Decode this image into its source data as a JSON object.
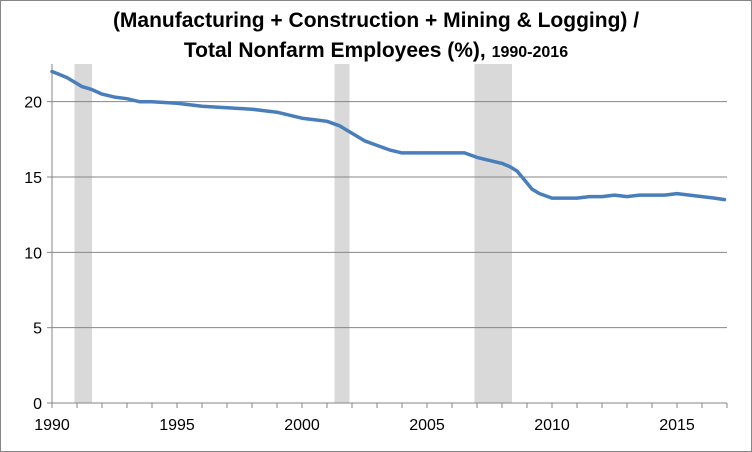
{
  "chart_data": {
    "type": "line",
    "title_line1": "(Manufacturing + Construction + Mining & Logging) /",
    "title_line2": "Total Nonfarm Employees (%),",
    "title_years": "1990-2016",
    "xlabel": "",
    "ylabel": "",
    "xlim": [
      1990,
      2017
    ],
    "ylim": [
      0,
      22.5
    ],
    "x_ticks": [
      1990,
      1995,
      2000,
      2005,
      2010,
      2015
    ],
    "y_ticks": [
      0,
      5,
      10,
      15,
      20
    ],
    "grid": "horizontal",
    "line_color": "#4a7ebb",
    "recession_color": "#d9d9d9",
    "recessions": [
      [
        1990.9,
        1991.6
      ],
      [
        2001.3,
        2001.9
      ],
      [
        2006.9,
        2008.4
      ]
    ],
    "series": [
      {
        "x": [
          1990.0,
          1990.3,
          1990.6,
          1990.9,
          1991.2,
          1991.6,
          1992.0,
          1992.5,
          1993.0,
          1993.5,
          1994.0,
          1995.0,
          1995.5,
          1996.0,
          1997.0,
          1998.0,
          1998.5,
          1999.0,
          1999.5,
          2000.0,
          2000.5,
          2001.0,
          2001.5,
          2002.0,
          2002.5,
          2003.0,
          2003.5,
          2004.0,
          2005.0,
          2006.0,
          2006.5,
          2007.0,
          2007.5,
          2008.0,
          2008.3,
          2008.6,
          2008.9,
          2009.2,
          2009.5,
          2010.0,
          2010.5,
          2011.0,
          2011.5,
          2012.0,
          2012.5,
          2013.0,
          2013.5,
          2014.0,
          2014.5,
          2015.0,
          2015.5,
          2016.0,
          2016.5,
          2016.9
        ],
        "values": [
          22.0,
          21.8,
          21.6,
          21.3,
          21.0,
          20.8,
          20.5,
          20.3,
          20.2,
          20.0,
          20.0,
          19.9,
          19.8,
          19.7,
          19.6,
          19.5,
          19.4,
          19.3,
          19.1,
          18.9,
          18.8,
          18.7,
          18.4,
          17.9,
          17.4,
          17.1,
          16.8,
          16.6,
          16.6,
          16.6,
          16.6,
          16.3,
          16.1,
          15.9,
          15.7,
          15.4,
          14.8,
          14.2,
          13.9,
          13.6,
          13.6,
          13.6,
          13.7,
          13.7,
          13.8,
          13.7,
          13.8,
          13.8,
          13.8,
          13.9,
          13.8,
          13.7,
          13.6,
          13.5
        ]
      }
    ]
  }
}
